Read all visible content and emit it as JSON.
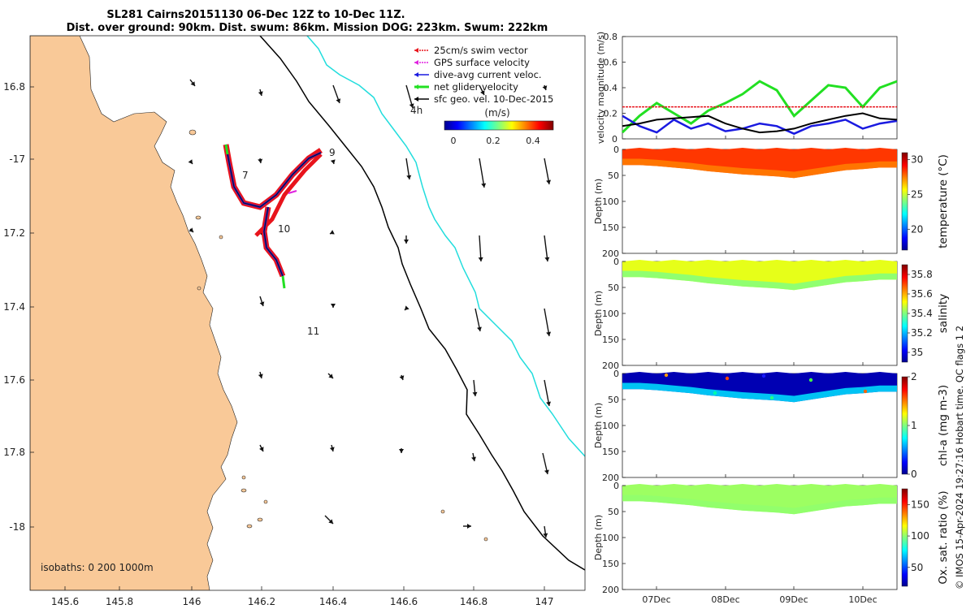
{
  "title": {
    "line1": "SL281 Cairns20151130 06-Dec 12Z to 10-Dec 11Z.",
    "line2": "Dist. over ground: 90km. Dist. swum: 86km. Mission DOG: 223km. Swum: 222km"
  },
  "legend": [
    {
      "label": "25cm/s swim vector",
      "color": "#e8141c"
    },
    {
      "label": "GPS surface velocity",
      "color": "#e021e0"
    },
    {
      "label": "dive-avg current veloc.",
      "color": "#1a1ae0"
    },
    {
      "label": "net glider velocity",
      "color": "#22e022"
    },
    {
      "label": "sfc geo. vel. 10-Dec-2015",
      "color": "#000000"
    }
  ],
  "map": {
    "marker_4h": "4h",
    "colorbar_unit": "(m/s)",
    "colorbar_ticks": [
      "0",
      "0.2",
      "0.4"
    ],
    "isobaths_label": "isobaths: 0   200  1000m",
    "day_labels": [
      "7",
      "9",
      "10",
      "11"
    ],
    "lon_ticks": [
      "145.6",
      "145.8",
      "146",
      "146.2",
      "146.4",
      "146.6",
      "146.8",
      "147"
    ],
    "lat_ticks": [
      "16.8",
      "-17",
      "17.2",
      "17.4",
      "17.6",
      "17.8",
      "-18"
    ],
    "land_color": "#f9c998",
    "isobath_200_color": "#000000",
    "isobath_1000_color": "#22dddd"
  },
  "velocity_panel": {
    "ylabel": "velocity magnitude (m/s)",
    "yticks": [
      "0",
      "0.2",
      "0.4",
      "0.6",
      "0.8"
    ]
  },
  "depth_panels": [
    {
      "ylabel": "Depth (m)",
      "cbar_label": "temperature (°C)",
      "cbar_ticks": [
        "30",
        "25",
        "20"
      ],
      "ticks": [
        "0",
        "50",
        "100",
        "150",
        "200"
      ]
    },
    {
      "ylabel": "Depth (m)",
      "cbar_label": "salinity",
      "cbar_ticks": [
        "35.8",
        "35.6",
        "35.4",
        "35.2",
        "35"
      ],
      "ticks": [
        "0",
        "50",
        "100",
        "150",
        "200"
      ]
    },
    {
      "ylabel": "Depth (m)",
      "cbar_label": "chl-a (mg m-3)",
      "cbar_ticks": [
        "2",
        "1",
        "0"
      ],
      "ticks": [
        "0",
        "50",
        "100",
        "150",
        "200"
      ]
    },
    {
      "ylabel": "Depth (m)",
      "cbar_label": "Ox. sat. ratio (%)",
      "cbar_ticks": [
        "150",
        "100",
        "50"
      ],
      "ticks": [
        "0",
        "50",
        "100",
        "150",
        "200"
      ]
    }
  ],
  "time_ticks": [
    "07Dec",
    "08Dec",
    "09Dec",
    "10Dec"
  ],
  "credit": "© IMOS 15-Apr-2024 19:27:16 Hobart time. QC flags 1  2",
  "chart_data": [
    {
      "type": "line",
      "title": "velocity magnitude time series",
      "x": [
        6.5,
        6.75,
        7.0,
        7.25,
        7.5,
        7.75,
        8.0,
        8.25,
        8.5,
        8.75,
        9.0,
        9.25,
        9.5,
        9.75,
        10.0,
        10.25,
        10.5
      ],
      "ylim": [
        0,
        0.8
      ],
      "series": [
        {
          "name": "net glider velocity",
          "color": "#22e022",
          "values": [
            0.05,
            0.18,
            0.28,
            0.2,
            0.12,
            0.22,
            0.28,
            0.35,
            0.45,
            0.38,
            0.18,
            0.3,
            0.42,
            0.4,
            0.25,
            0.4,
            0.45
          ]
        },
        {
          "name": "dive-avg current veloc.",
          "color": "#1a1ae0",
          "values": [
            0.18,
            0.1,
            0.05,
            0.15,
            0.08,
            0.12,
            0.06,
            0.08,
            0.12,
            0.1,
            0.04,
            0.1,
            0.12,
            0.15,
            0.08,
            0.12,
            0.14
          ]
        },
        {
          "name": "sfc geo. vel.",
          "color": "#000000",
          "values": [
            0.1,
            0.12,
            0.15,
            0.16,
            0.17,
            0.18,
            0.12,
            0.08,
            0.05,
            0.06,
            0.08,
            0.12,
            0.15,
            0.18,
            0.2,
            0.16,
            0.15
          ]
        },
        {
          "name": "25cm/s swim vector",
          "color": "#e8141c",
          "values": [
            0.25,
            0.25,
            0.25,
            0.25,
            0.25,
            0.25,
            0.25,
            0.25,
            0.25,
            0.25,
            0.25,
            0.25,
            0.25,
            0.25,
            0.25,
            0.25,
            0.25
          ]
        }
      ]
    },
    {
      "type": "heatmap",
      "variable": "temperature",
      "unit": "°C",
      "clim": [
        17,
        31
      ],
      "mixed_layer_depth_m": [
        30,
        30,
        32,
        35,
        38,
        42,
        45,
        48,
        50,
        52,
        55,
        50,
        45,
        40,
        38,
        35,
        35
      ],
      "surface_value": 28.5,
      "deep_value": 27.5
    },
    {
      "type": "heatmap",
      "variable": "salinity",
      "unit": "",
      "clim": [
        34.9,
        35.9
      ],
      "mixed_layer_depth_m": [
        30,
        30,
        32,
        35,
        38,
        42,
        45,
        48,
        50,
        52,
        55,
        50,
        45,
        40,
        38,
        35,
        35
      ],
      "surface_value": 35.5,
      "deep_value": 35.4
    },
    {
      "type": "heatmap",
      "variable": "chl-a",
      "unit": "mg m-3",
      "clim": [
        0,
        2
      ],
      "mixed_layer_depth_m": [
        30,
        30,
        32,
        35,
        38,
        42,
        45,
        48,
        50,
        52,
        55,
        50,
        45,
        40,
        38,
        35,
        35
      ],
      "surface_value": 0.1,
      "deep_value": 0.7
    },
    {
      "type": "heatmap",
      "variable": "Ox. sat. ratio",
      "unit": "%",
      "clim": [
        20,
        175
      ],
      "mixed_layer_depth_m": [
        30,
        30,
        32,
        35,
        38,
        42,
        45,
        48,
        50,
        52,
        55,
        50,
        45,
        40,
        38,
        35,
        35
      ],
      "surface_value": 102,
      "deep_value": 100
    }
  ]
}
